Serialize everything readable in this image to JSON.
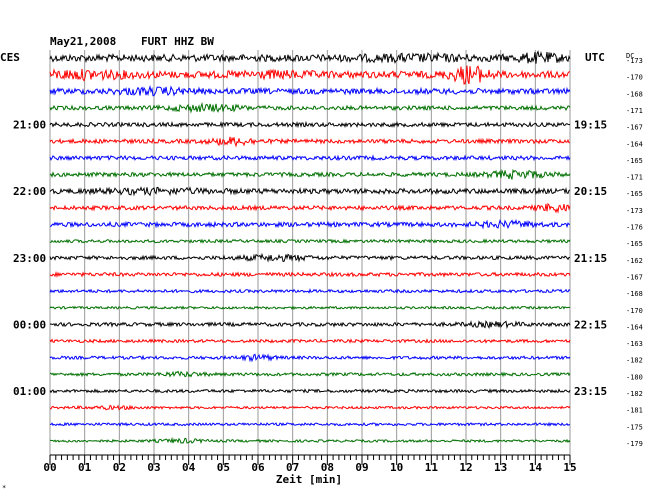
{
  "header": {
    "date": "May21,2008",
    "station": "FURT HHZ BW",
    "left_tz": "CES",
    "right_tz": "UTC",
    "dc_label": "DC"
  },
  "chart_data": {
    "type": "line",
    "title": "May21,2008   FURT HHZ BW",
    "xlabel": "Zeit [min]",
    "ylabel": "",
    "x_ticks": [
      "00",
      "01",
      "02",
      "03",
      "04",
      "05",
      "06",
      "07",
      "08",
      "09",
      "10",
      "11",
      "12",
      "13",
      "14",
      "15"
    ],
    "xlim": [
      0,
      15
    ],
    "grid": true,
    "trace_colors": [
      "#000000",
      "#ff0000",
      "#0000ff",
      "#007000"
    ],
    "left_time_labels": [
      {
        "row": 4,
        "label": "21:00"
      },
      {
        "row": 8,
        "label": "22:00"
      },
      {
        "row": 12,
        "label": "23:00"
      },
      {
        "row": 16,
        "label": "00:00"
      },
      {
        "row": 20,
        "label": "01:00"
      }
    ],
    "right_time_labels": [
      {
        "row": 4,
        "label": "19:15"
      },
      {
        "row": 8,
        "label": "20:15"
      },
      {
        "row": 12,
        "label": "21:15"
      },
      {
        "row": 16,
        "label": "22:15"
      },
      {
        "row": 20,
        "label": "23:15"
      }
    ],
    "dc_offsets": [
      "-173",
      "-170",
      "-168",
      "-171",
      "-167",
      "-164",
      "-165",
      "-171",
      "-165",
      "-173",
      "-176",
      "-165",
      "-162",
      "-167",
      "-168",
      "-170",
      "-164",
      "-163",
      "-182",
      "-180",
      "-182",
      "-181",
      "-175",
      "-179"
    ],
    "traces": [
      {
        "amp": 3.5,
        "events": [
          {
            "t": 14.1,
            "a": 3,
            "w": 0.6
          },
          {
            "t": 10.5,
            "a": 1.5,
            "w": 1.5
          }
        ]
      },
      {
        "amp": 3.5,
        "events": [
          {
            "t": 12.1,
            "a": 7,
            "w": 0.5
          },
          {
            "t": 1.0,
            "a": 2.5,
            "w": 1.2
          },
          {
            "t": 6.5,
            "a": 1.5,
            "w": 1.0
          }
        ]
      },
      {
        "amp": 2.8,
        "events": [
          {
            "t": 3.0,
            "a": 2,
            "w": 1.0
          }
        ]
      },
      {
        "amp": 2.0,
        "events": [
          {
            "t": 4.5,
            "a": 2.5,
            "w": 1.0
          }
        ]
      },
      {
        "amp": 2.0,
        "events": []
      },
      {
        "amp": 2.0,
        "events": [
          {
            "t": 5.3,
            "a": 3,
            "w": 0.6
          }
        ]
      },
      {
        "amp": 2.0,
        "events": []
      },
      {
        "amp": 2.0,
        "events": [
          {
            "t": 13.5,
            "a": 3,
            "w": 0.8
          }
        ]
      },
      {
        "amp": 2.5,
        "events": [
          {
            "t": 3.0,
            "a": 1.5,
            "w": 1.5
          }
        ]
      },
      {
        "amp": 2.0,
        "events": [
          {
            "t": 14.6,
            "a": 3,
            "w": 0.5
          }
        ]
      },
      {
        "amp": 2.2,
        "events": [
          {
            "t": 13.2,
            "a": 2,
            "w": 0.8
          }
        ]
      },
      {
        "amp": 1.5,
        "events": []
      },
      {
        "amp": 1.8,
        "events": [
          {
            "t": 6.5,
            "a": 2,
            "w": 1.0
          }
        ]
      },
      {
        "amp": 1.8,
        "events": []
      },
      {
        "amp": 1.5,
        "events": []
      },
      {
        "amp": 1.2,
        "events": []
      },
      {
        "amp": 1.8,
        "events": [
          {
            "t": 12.8,
            "a": 1.5,
            "w": 0.8
          }
        ]
      },
      {
        "amp": 1.5,
        "events": []
      },
      {
        "amp": 1.5,
        "events": [
          {
            "t": 6.0,
            "a": 2,
            "w": 0.5
          }
        ]
      },
      {
        "amp": 1.5,
        "events": [
          {
            "t": 3.8,
            "a": 1.5,
            "w": 0.6
          }
        ]
      },
      {
        "amp": 1.5,
        "events": []
      },
      {
        "amp": 1.2,
        "events": [
          {
            "t": 1.8,
            "a": 1,
            "w": 0.8
          }
        ]
      },
      {
        "amp": 1.3,
        "events": []
      },
      {
        "amp": 1.2,
        "events": [
          {
            "t": 3.8,
            "a": 1.5,
            "w": 0.6
          }
        ]
      }
    ]
  },
  "footer": {
    "corner_mark": "*"
  }
}
